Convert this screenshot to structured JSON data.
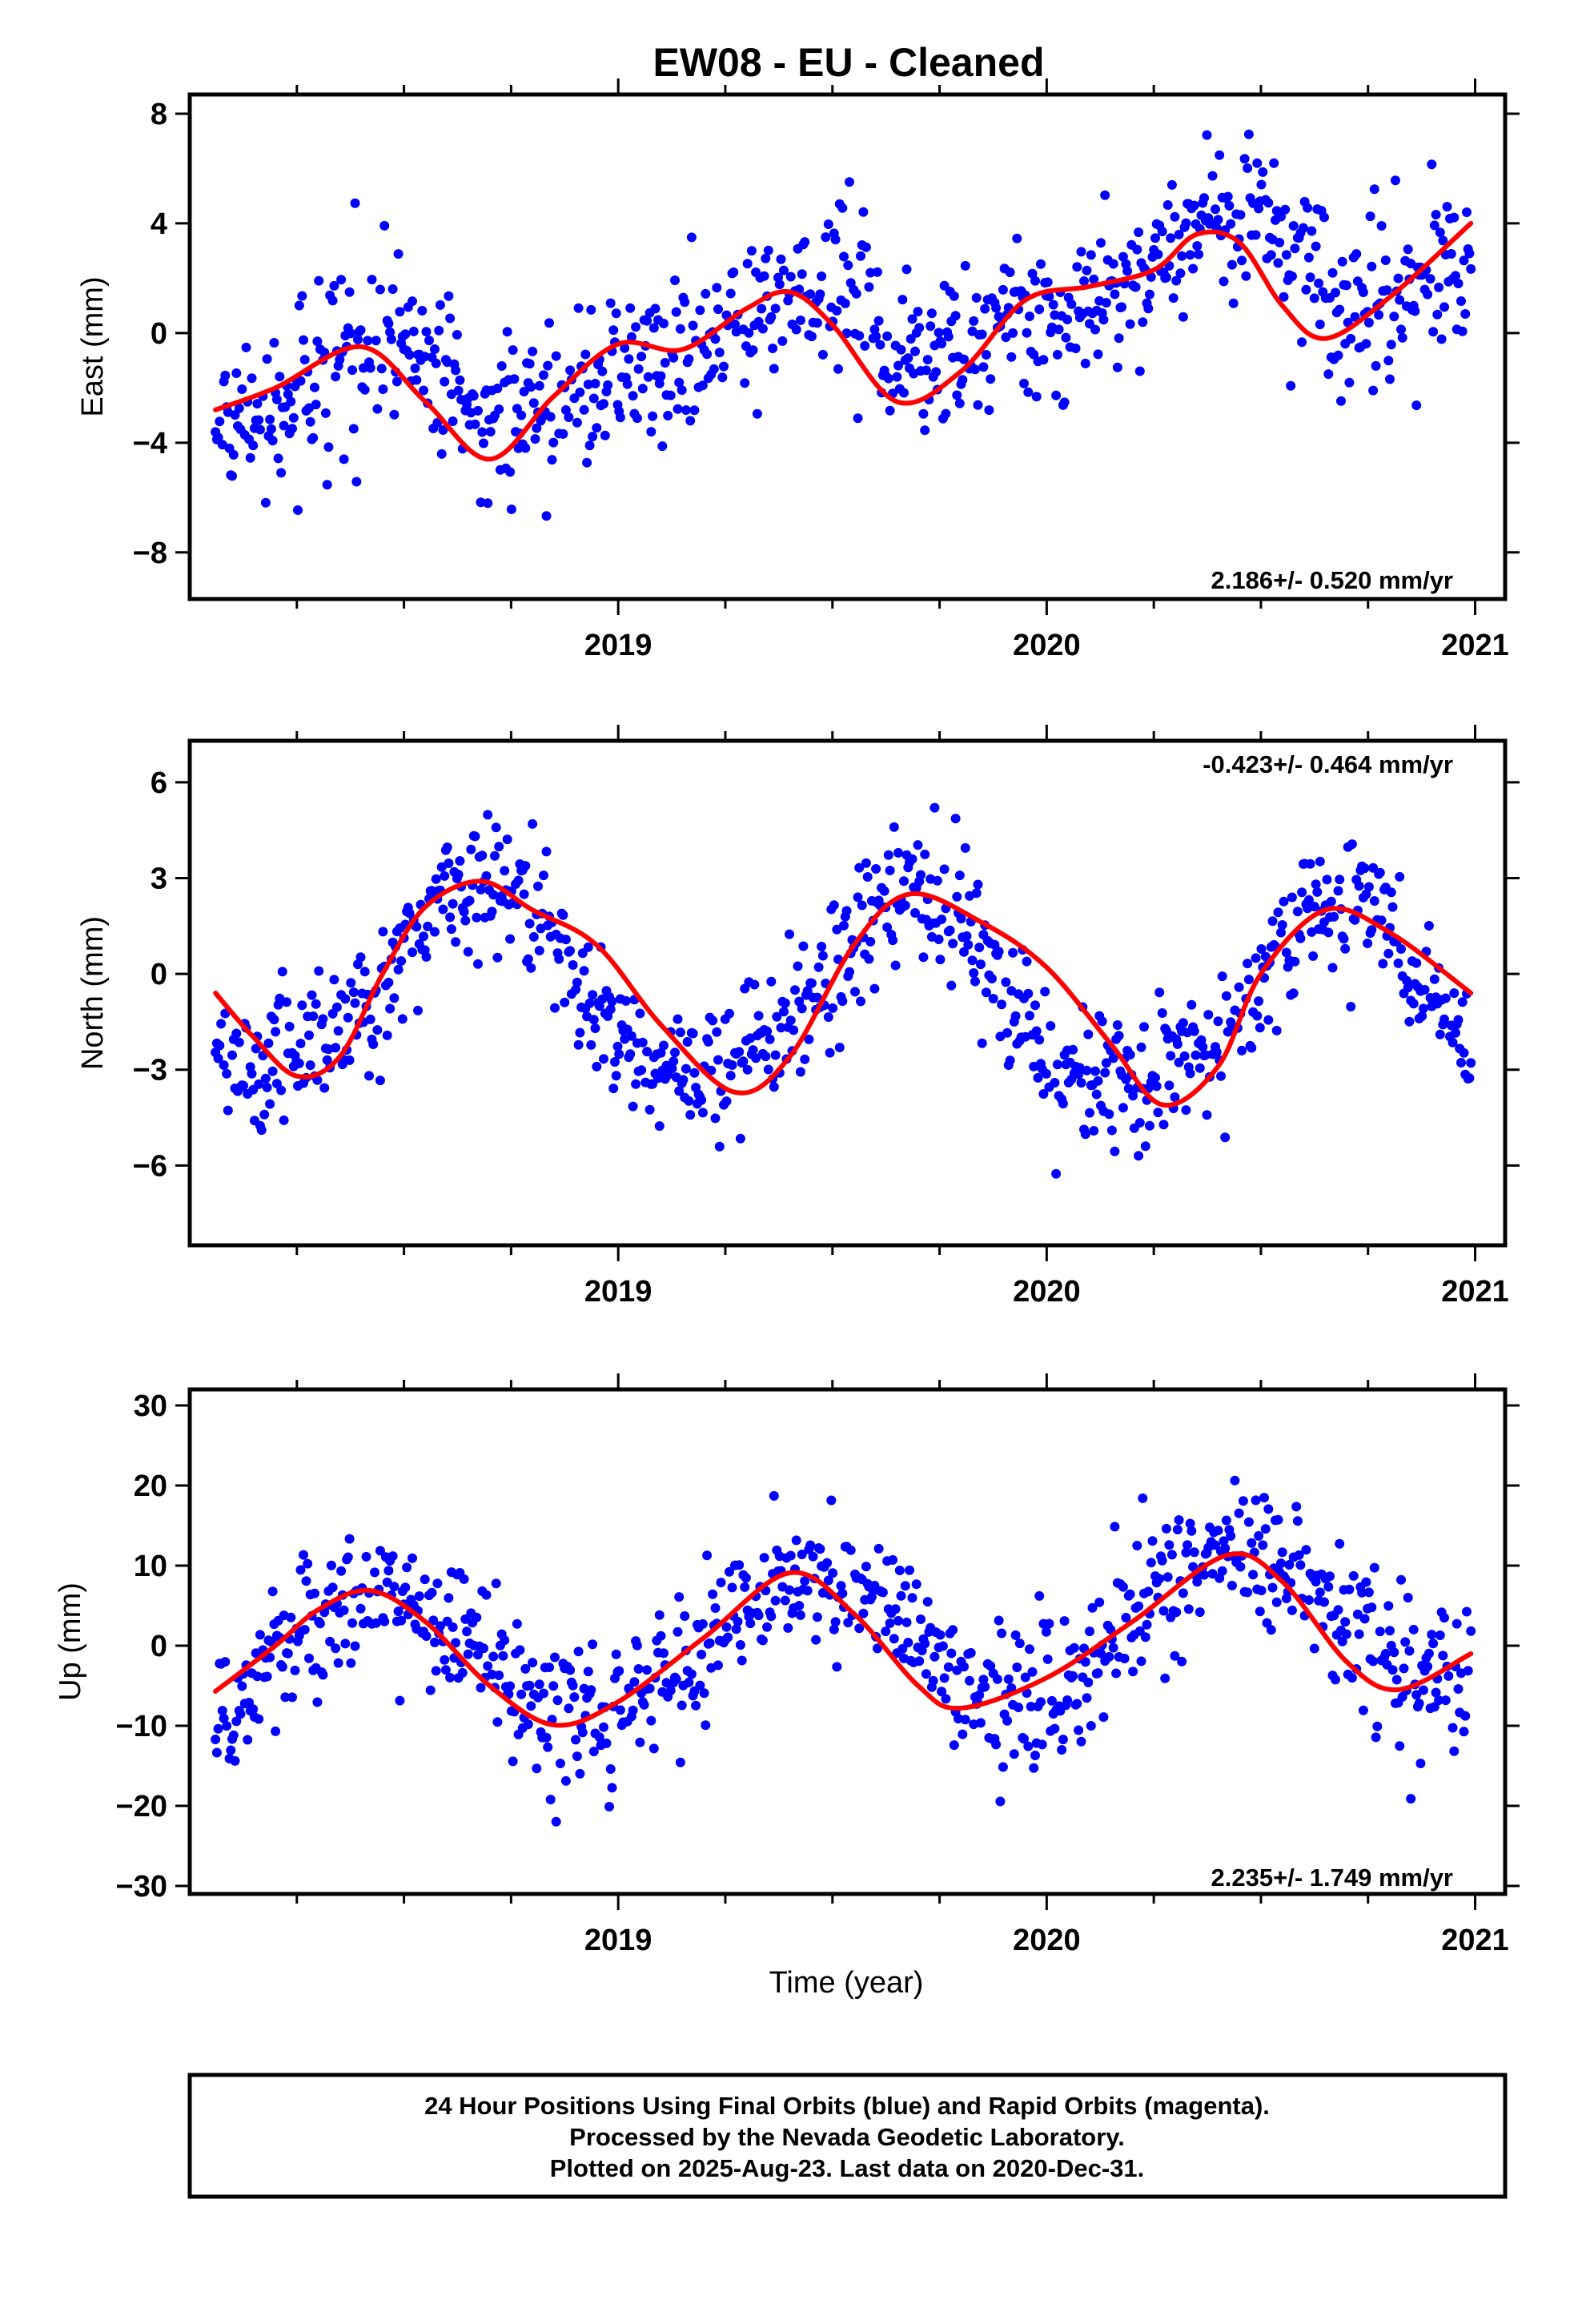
{
  "title": "EW08  - EU - Cleaned",
  "colors": {
    "points": "#0000ff",
    "fit": "#ff0000",
    "frame": "#000000"
  },
  "footer": {
    "line1": "24 Hour Positions Using Final Orbits (blue) and Rapid Orbits (magenta).",
    "line2": "Processed by the Nevada Geodetic Laboratory.",
    "line3": "Plotted on 2025-Aug-23. Last data on 2020-Dec-31."
  },
  "chart_data": [
    {
      "type": "scatter",
      "ylabel": "East (mm)",
      "xlabel": "",
      "xlim": [
        2018.0,
        2021.07
      ],
      "ylim": [
        -9.7,
        8.7
      ],
      "yticks": [
        -8,
        -4,
        0,
        4,
        8
      ],
      "ytick_labels": [
        "−8",
        "−4",
        "0",
        "4",
        "8"
      ],
      "xticks": [
        2019,
        2020,
        2021
      ],
      "xtick_labels": [
        "2019",
        "2020",
        "2021"
      ],
      "rate_text": "2.186+/- 0.520 mm/yr",
      "rate_position": "bottom-right",
      "grid": false,
      "series": [
        {
          "kind": "daily-positions",
          "color": "#0000ff",
          "x_range": [
            2018.06,
            2020.99
          ],
          "trend_mm_per_yr": 2.186,
          "trend_value_at_2018": -3.2,
          "annual_amp": 1.6,
          "annual_peak": 2018.38,
          "semiannual_amp": 0.8,
          "semiannual_peak": 2018.45,
          "noise_sd": 1.5
        },
        {
          "kind": "fit",
          "x": [
            2018.06,
            2018.2,
            2018.4,
            2018.55,
            2018.7,
            2018.85,
            2019.0,
            2019.15,
            2019.3,
            2019.4,
            2019.5,
            2019.65,
            2019.8,
            2019.95,
            2020.1,
            2020.25,
            2020.35,
            2020.45,
            2020.55,
            2020.65,
            2020.8,
            2020.99
          ],
          "y": [
            -2.8,
            -2.0,
            -0.5,
            -2.5,
            -4.6,
            -2.3,
            -0.4,
            -0.6,
            0.9,
            1.5,
            0.3,
            -2.5,
            -1.4,
            1.2,
            1.7,
            2.3,
            3.6,
            3.3,
            1.0,
            -0.2,
            1.3,
            4.0
          ]
        }
      ]
    },
    {
      "type": "scatter",
      "ylabel": "North (mm)",
      "xlabel": "",
      "xlim": [
        2018.0,
        2021.07
      ],
      "ylim": [
        -8.5,
        7.3
      ],
      "yticks": [
        -6,
        -3,
        0,
        3,
        6
      ],
      "ytick_labels": [
        "−6",
        "−3",
        "0",
        "3",
        "6"
      ],
      "xticks": [
        2019,
        2020,
        2021
      ],
      "xtick_labels": [
        "2019",
        "2020",
        "2021"
      ],
      "rate_text": "-0.423+/- 0.464 mm/yr",
      "rate_position": "top-right",
      "grid": false,
      "series": [
        {
          "kind": "daily-positions",
          "color": "#0000ff",
          "x_range": [
            2018.06,
            2020.99
          ],
          "trend_mm_per_yr": -0.423,
          "trend_value_at_2018": 0.0,
          "annual_amp": 3.0,
          "annual_peak": 2018.68,
          "semiannual_amp": 0.4,
          "semiannual_peak": 2018.7,
          "noise_sd": 1.1
        },
        {
          "kind": "fit",
          "x": [
            2018.06,
            2018.15,
            2018.25,
            2018.35,
            2018.45,
            2018.55,
            2018.68,
            2018.8,
            2018.95,
            2019.1,
            2019.27,
            2019.4,
            2019.55,
            2019.68,
            2019.85,
            2020.0,
            2020.15,
            2020.27,
            2020.4,
            2020.5,
            2020.65,
            2020.8,
            2020.99
          ],
          "y": [
            -0.6,
            -2.0,
            -3.2,
            -2.6,
            0.0,
            2.1,
            2.9,
            2.0,
            0.9,
            -1.6,
            -3.7,
            -2.6,
            0.9,
            2.5,
            1.6,
            0.2,
            -2.2,
            -4.1,
            -2.9,
            0.0,
            2.0,
            1.3,
            -0.6
          ]
        }
      ]
    },
    {
      "type": "scatter",
      "ylabel": "Up (mm)",
      "xlabel": "Time (year)",
      "xlim": [
        2018.0,
        2021.07
      ],
      "ylim": [
        -31,
        32
      ],
      "yticks": [
        -30,
        -20,
        -10,
        0,
        10,
        20,
        30
      ],
      "ytick_labels": [
        "−30",
        "−20",
        "−10",
        "0",
        "10",
        "20",
        "30"
      ],
      "xticks": [
        2019,
        2020,
        2021
      ],
      "xtick_labels": [
        "2019",
        "2020",
        "2021"
      ],
      "rate_text": "2.235+/- 1.749 mm/yr",
      "rate_position": "bottom-right",
      "grid": false,
      "series": [
        {
          "kind": "daily-positions",
          "color": "#0000ff",
          "x_range": [
            2018.06,
            2020.99
          ],
          "trend_mm_per_yr": 2.235,
          "trend_value_at_2018": -3.0,
          "annual_amp": 8.3,
          "annual_peak": 2018.44,
          "semiannual_amp": 0.0,
          "semiannual_peak": 2018.4,
          "noise_sd": 4.5
        },
        {
          "kind": "fit",
          "x": [
            2018.06,
            2018.2,
            2018.3,
            2018.42,
            2018.55,
            2018.7,
            2018.85,
            2019.0,
            2019.2,
            2019.4,
            2019.55,
            2019.7,
            2019.8,
            2020.0,
            2020.2,
            2020.42,
            2020.55,
            2020.7,
            2020.82,
            2020.99
          ],
          "y": [
            -5.7,
            0.0,
            4.5,
            6.9,
            3.0,
            -5.0,
            -9.9,
            -7.0,
            1.0,
            9.1,
            4.0,
            -5.0,
            -7.8,
            -4.0,
            3.0,
            11.3,
            8.0,
            -2.0,
            -5.5,
            -1.0
          ]
        }
      ]
    }
  ]
}
